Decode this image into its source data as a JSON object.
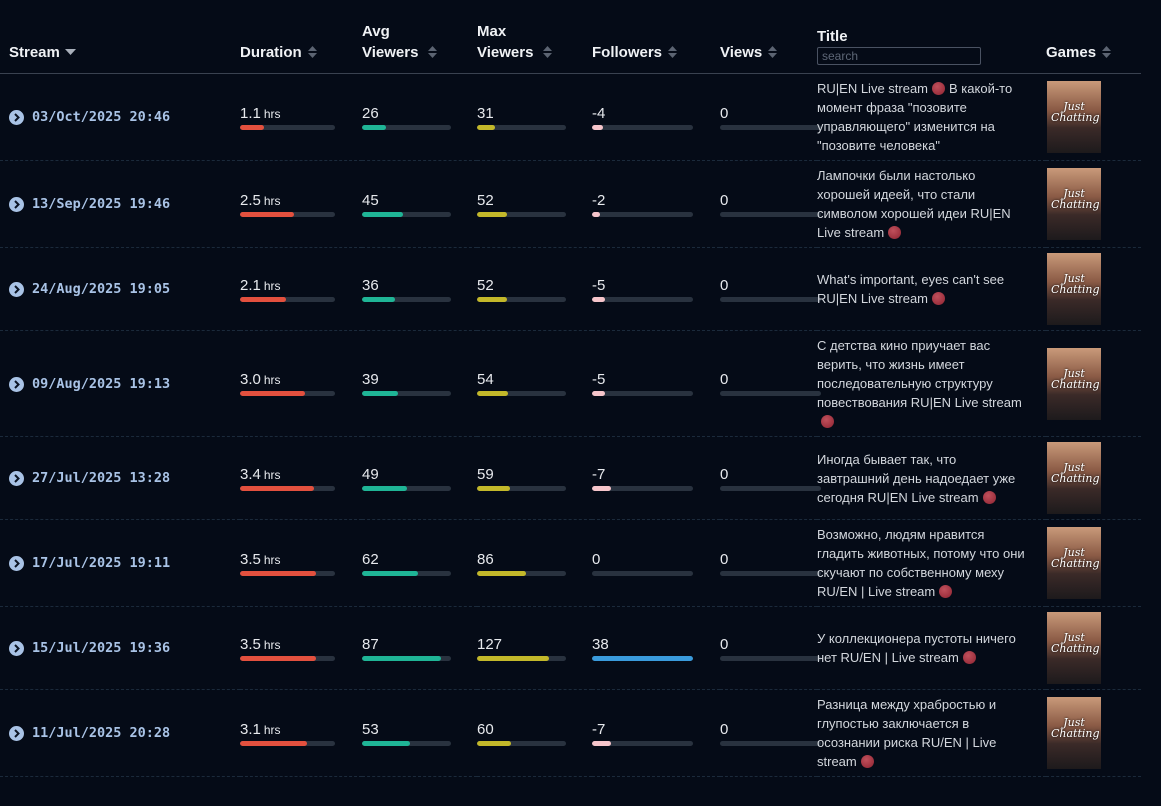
{
  "table": {
    "headers": {
      "stream": "Stream",
      "duration": "Duration",
      "avg_viewers": "Avg Viewers",
      "max_viewers": "Max Viewers",
      "followers": "Followers",
      "views": "Views",
      "title": "Title",
      "games": "Games"
    },
    "search_placeholder": "search",
    "duration_unit": "hrs",
    "rows": [
      {
        "stream": "03/Oct/2025 20:46",
        "duration": 1.1,
        "avg_viewers": 26,
        "max_viewers": 31,
        "followers": -4,
        "views": 0,
        "title": [
          {
            "text": "RU|EN Live stream",
            "dot": true
          },
          {
            "text": "В какой-то момент фраза \"позовите управляющего\" изменится на \"позовите человека\"",
            "dot": false
          }
        ],
        "game": "Just Chatting"
      },
      {
        "stream": "13/Sep/2025 19:46",
        "duration": 2.5,
        "avg_viewers": 45,
        "max_viewers": 52,
        "followers": -2,
        "views": 0,
        "title": [
          {
            "text": "Лампочки были настолько хорошей идеей, что стали символом хорошей идеи RU|EN Live stream",
            "dot": true
          }
        ],
        "game": "Just Chatting"
      },
      {
        "stream": "24/Aug/2025 19:05",
        "duration": 2.1,
        "avg_viewers": 36,
        "max_viewers": 52,
        "followers": -5,
        "views": 0,
        "title": [
          {
            "text": "What's important, eyes can't see RU|EN Live stream",
            "dot": true
          }
        ],
        "game": "Just Chatting"
      },
      {
        "stream": "09/Aug/2025 19:13",
        "duration": {
          "value": 3,
          "label": "3.0"
        },
        "avg_viewers": 39,
        "max_viewers": 54,
        "followers": -5,
        "views": 0,
        "title": [
          {
            "text": "С детства кино приучает вас верить, что жизнь имеет последовательную структуру повествования RU|EN Live stream",
            "dot": true
          }
        ],
        "game": "Just Chatting"
      },
      {
        "stream": "27/Jul/2025 13:28",
        "duration": 3.4,
        "avg_viewers": 49,
        "max_viewers": 59,
        "followers": -7,
        "views": 0,
        "title": [
          {
            "text": "Иногда бывает так, что завтрашний день надоедает уже сегодня RU|EN Live stream",
            "dot": true
          }
        ],
        "game": "Just Chatting"
      },
      {
        "stream": "17/Jul/2025 19:11",
        "duration": 3.5,
        "avg_viewers": 62,
        "max_viewers": 86,
        "followers": 0,
        "views": 0,
        "title": [
          {
            "text": "Возможно, людям нравится гладить животных, потому что они скучают по собственному меху RU/EN | Live stream",
            "dot": true
          }
        ],
        "game": "Just Chatting"
      },
      {
        "stream": "15/Jul/2025 19:36",
        "duration": 3.5,
        "avg_viewers": 87,
        "max_viewers": 127,
        "followers": 38,
        "views": 0,
        "title": [
          {
            "text": "У коллекционера пустоты ничего нет RU/EN | Live stream",
            "dot": true
          }
        ],
        "game": "Just Chatting"
      },
      {
        "stream": "11/Jul/2025 20:28",
        "duration": 3.1,
        "avg_viewers": 53,
        "max_viewers": 60,
        "followers": -7,
        "views": 0,
        "title": [
          {
            "text": "Разница между храбростью и глупостью заключается в осознании риска RU/EN | Live stream",
            "dot": true
          }
        ],
        "game": "Just Chatting"
      }
    ]
  }
}
